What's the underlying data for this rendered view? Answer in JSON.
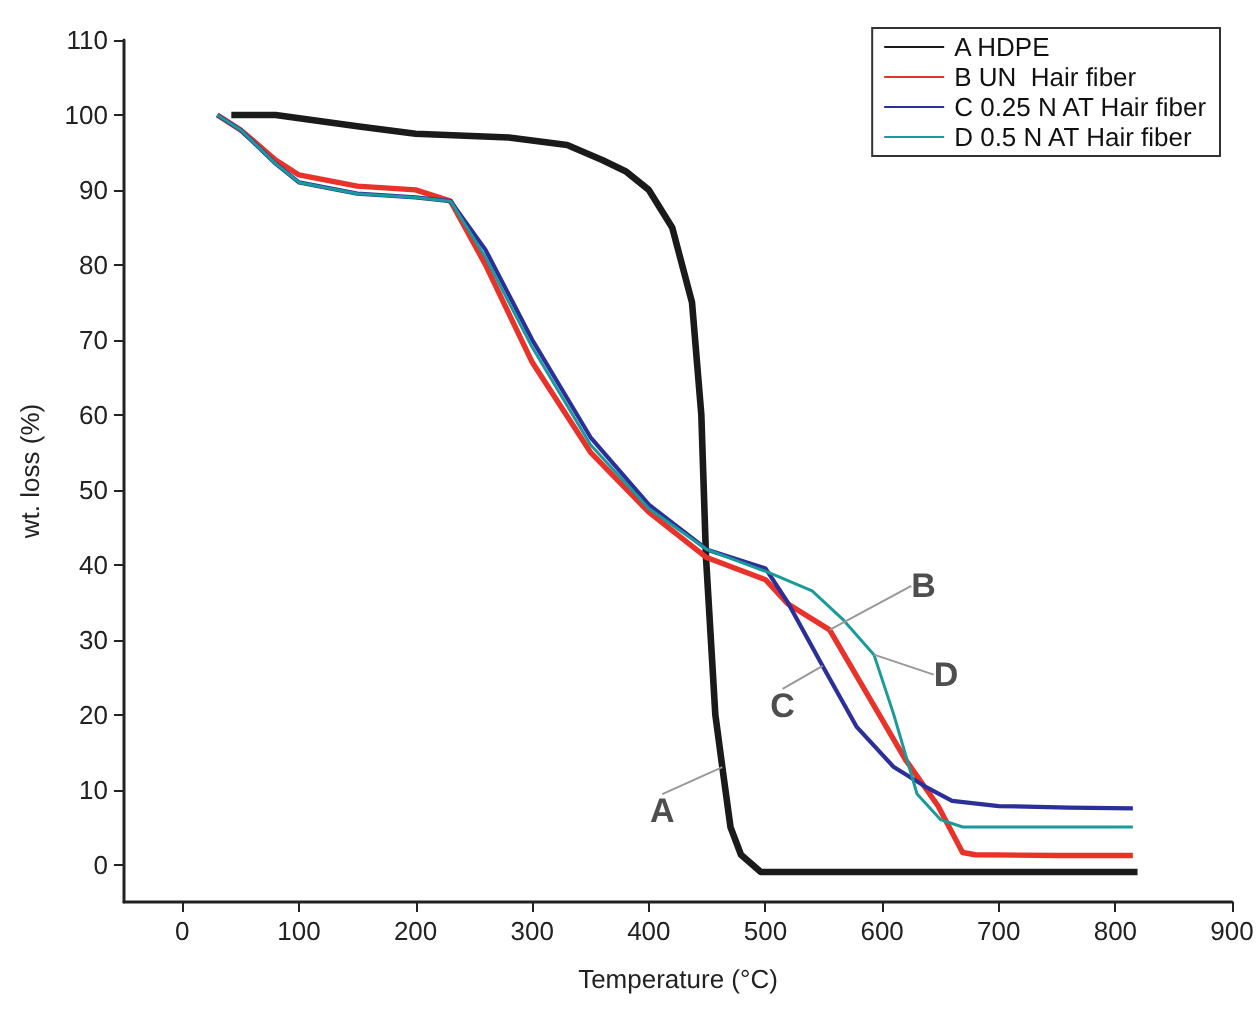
{
  "chart_data": {
    "type": "line",
    "xlabel": "Temperature (°C)",
    "ylabel": "wt. loss (%)",
    "xlim": [
      -50,
      900
    ],
    "xticks": [
      0,
      100,
      200,
      300,
      400,
      500,
      600,
      700,
      800,
      900
    ],
    "ylim": [
      -5,
      110
    ],
    "yticks": [
      0,
      10,
      20,
      30,
      40,
      50,
      60,
      70,
      80,
      90,
      100,
      110
    ],
    "grid": false,
    "legend": "top right",
    "marker": "none",
    "line_style": "solid",
    "series": [
      {
        "name": "A HDPE",
        "color": "#1a1a1a",
        "x": [
          42,
          80,
          150,
          200,
          280,
          330,
          360,
          380,
          400,
          420,
          437,
          445,
          449,
          457,
          463,
          470,
          479,
          496,
          600,
          700,
          819
        ],
        "values": [
          100,
          100,
          98.5,
          97.5,
          97,
          96,
          94,
          92.5,
          90,
          85,
          75,
          60,
          41,
          20,
          13,
          5,
          1.3,
          -1,
          -1,
          -1,
          -1
        ]
      },
      {
        "name": "B UN  Hair fiber",
        "color": "#e8322a",
        "x": [
          30,
          50,
          80,
          100,
          150,
          200,
          230,
          260,
          300,
          350,
          400,
          449,
          500,
          519,
          555,
          590,
          620,
          648,
          669,
          680,
          750,
          815
        ],
        "values": [
          100,
          98,
          94,
          92,
          90.5,
          90,
          88.5,
          80,
          67,
          55,
          47,
          41,
          38,
          34.8,
          31.3,
          22,
          14,
          7.8,
          1.6,
          1.3,
          1.2,
          1.2
        ]
      },
      {
        "name": "C 0.25 N AT Hair fiber",
        "color": "#2b2f9a",
        "x": [
          30,
          50,
          80,
          100,
          150,
          200,
          230,
          260,
          300,
          350,
          400,
          450,
          500,
          519,
          549,
          578,
          610,
          637,
          660,
          700,
          760,
          815
        ],
        "values": [
          100,
          98,
          93.5,
          91,
          89.5,
          89,
          88.5,
          82,
          70,
          57,
          48,
          42,
          39.5,
          35,
          26.5,
          18.4,
          13,
          10.4,
          8.5,
          7.8,
          7.6,
          7.5
        ]
      },
      {
        "name": "D 0.5 N AT Hair fiber",
        "color": "#1a9a9a",
        "x": [
          30,
          50,
          80,
          100,
          150,
          200,
          230,
          260,
          300,
          350,
          400,
          450,
          502,
          540,
          567,
          593,
          610,
          630,
          650,
          669,
          700,
          760,
          815
        ],
        "values": [
          100,
          98,
          93.5,
          91,
          89.5,
          89,
          88.5,
          81,
          69,
          56,
          47.5,
          42,
          39,
          36.5,
          32.6,
          28,
          20,
          9.4,
          6,
          5,
          5,
          5,
          5
        ]
      }
    ],
    "annotations": [
      {
        "text": "A",
        "x": 463,
        "y": 13
      },
      {
        "text": "B",
        "x": 555,
        "y": 31.3
      },
      {
        "text": "C",
        "x": 549,
        "y": 26.5
      },
      {
        "text": "D",
        "x": 593,
        "y": 28
      }
    ]
  }
}
